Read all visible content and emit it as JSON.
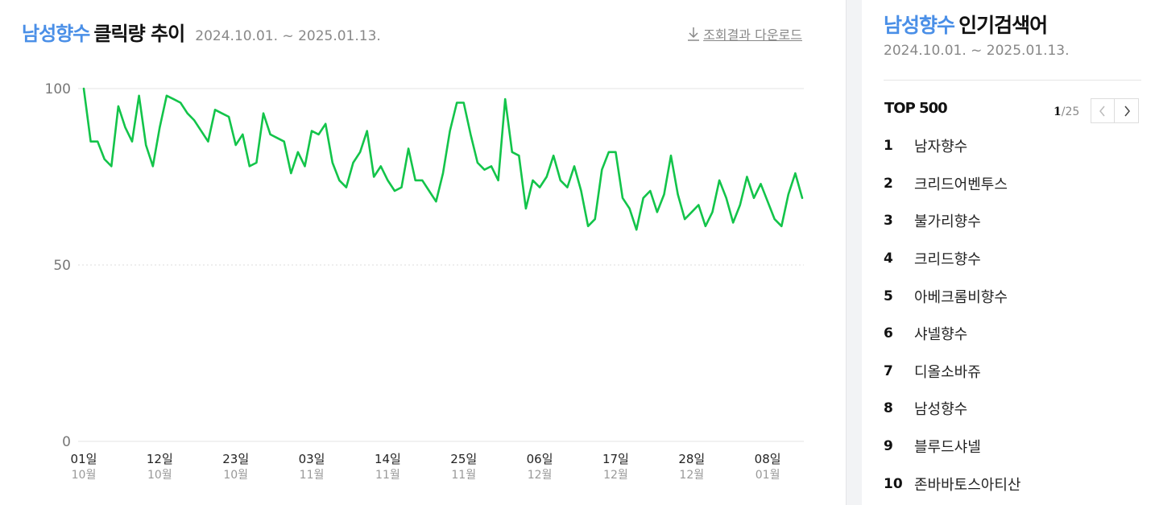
{
  "left_panel": {
    "keyword": "남성향수",
    "title_suffix": "클릭량 추이",
    "date_range": "2024.10.01. ~ 2025.01.13.",
    "download_label": "조회결과 다운로드",
    "download_icon": "download-arrow-icon"
  },
  "chart_data": {
    "type": "line",
    "title": "남성향수 클릭량 추이",
    "ylim": [
      0,
      100
    ],
    "yticks": [
      "0",
      "50",
      "100"
    ],
    "x_start": "2024-10-01",
    "x_end": "2025-01-13",
    "xtick_days": [
      "01일",
      "12일",
      "23일",
      "03일",
      "14일",
      "25일",
      "06일",
      "17일",
      "28일",
      "08일"
    ],
    "xtick_months": [
      "10월",
      "10월",
      "10월",
      "11월",
      "11월",
      "11월",
      "12월",
      "12월",
      "12월",
      "01월"
    ],
    "xtick_dates": [
      "2024-10-01",
      "2024-10-12",
      "2024-10-23",
      "2024-11-03",
      "2024-11-14",
      "2024-11-25",
      "2024-12-06",
      "2024-12-17",
      "2024-12-28",
      "2025-01-08"
    ],
    "line_color": "#13c44a",
    "grid": true,
    "series": [
      {
        "values": [
          100,
          85,
          85,
          80,
          78,
          95,
          89,
          85,
          98,
          84,
          78,
          89,
          98,
          97,
          96,
          93,
          91,
          88,
          85,
          94,
          93,
          92,
          84,
          87,
          78,
          79,
          93,
          87,
          86,
          85,
          76,
          82,
          78,
          88,
          87,
          90,
          79,
          74,
          72,
          79,
          82,
          88,
          75,
          78,
          74,
          71,
          72,
          83,
          74,
          74,
          71,
          68,
          76,
          88,
          96,
          96,
          87,
          79,
          77,
          78,
          74,
          97,
          82,
          81,
          66,
          74,
          72,
          75,
          81,
          74,
          72,
          78,
          71,
          61,
          63,
          77,
          82,
          82,
          69,
          66,
          60,
          69,
          71,
          65,
          70,
          81,
          70,
          63,
          65,
          67,
          61,
          65,
          74,
          69,
          62,
          67,
          75,
          69,
          73,
          68,
          63,
          61,
          70,
          76,
          69
        ]
      }
    ]
  },
  "right_panel": {
    "keyword": "남성향수",
    "title_suffix": "인기검색어",
    "date_range": "2024.10.01. ~ 2025.01.13.",
    "top_label": "TOP 500",
    "page_current": "1",
    "page_total": "/25",
    "prev_icon": "chevron-left-icon",
    "next_icon": "chevron-right-icon",
    "ranks": [
      {
        "num": "1",
        "text": "남자향수"
      },
      {
        "num": "2",
        "text": "크리드어벤투스"
      },
      {
        "num": "3",
        "text": "불가리향수"
      },
      {
        "num": "4",
        "text": "크리드향수"
      },
      {
        "num": "5",
        "text": "아베크롬비향수"
      },
      {
        "num": "6",
        "text": "샤넬향수"
      },
      {
        "num": "7",
        "text": "디올소바쥬"
      },
      {
        "num": "8",
        "text": "남성향수"
      },
      {
        "num": "9",
        "text": "블루드샤넬"
      },
      {
        "num": "10",
        "text": "존바바토스아티산"
      }
    ]
  }
}
